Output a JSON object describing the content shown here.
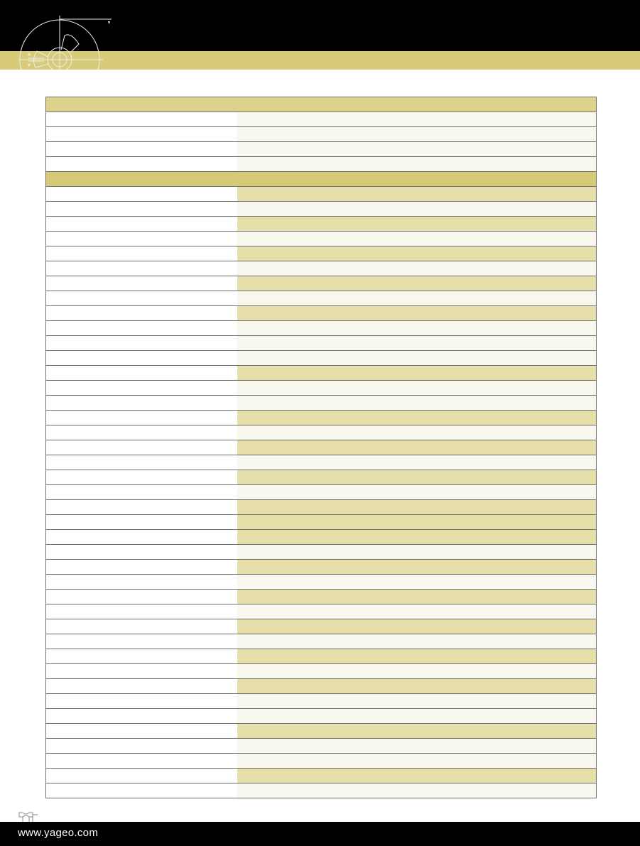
{
  "colors": {
    "header_black": "#000000",
    "accent_gold": "#d7cb79",
    "row_dark": "#e7dfaa",
    "row_light": "#f9f8ef"
  },
  "table": {
    "section1_rows": [
      "light",
      "light",
      "light",
      "light"
    ],
    "section2_rows": [
      "dark",
      "light",
      "dark",
      "light",
      "dark",
      "light",
      "dark",
      "light",
      "dark",
      "light",
      "light",
      "light",
      "dark",
      "light",
      "light",
      "dark",
      "light",
      "dark",
      "light",
      "dark",
      "light",
      "dark",
      "dark",
      "dark",
      "light",
      "dark",
      "light",
      "dark",
      "light",
      "dark",
      "light",
      "dark",
      "light",
      "dark",
      "light",
      "light",
      "dark",
      "light",
      "light",
      "dark",
      "light"
    ]
  },
  "footer": {
    "url": "www.yageo.com"
  }
}
